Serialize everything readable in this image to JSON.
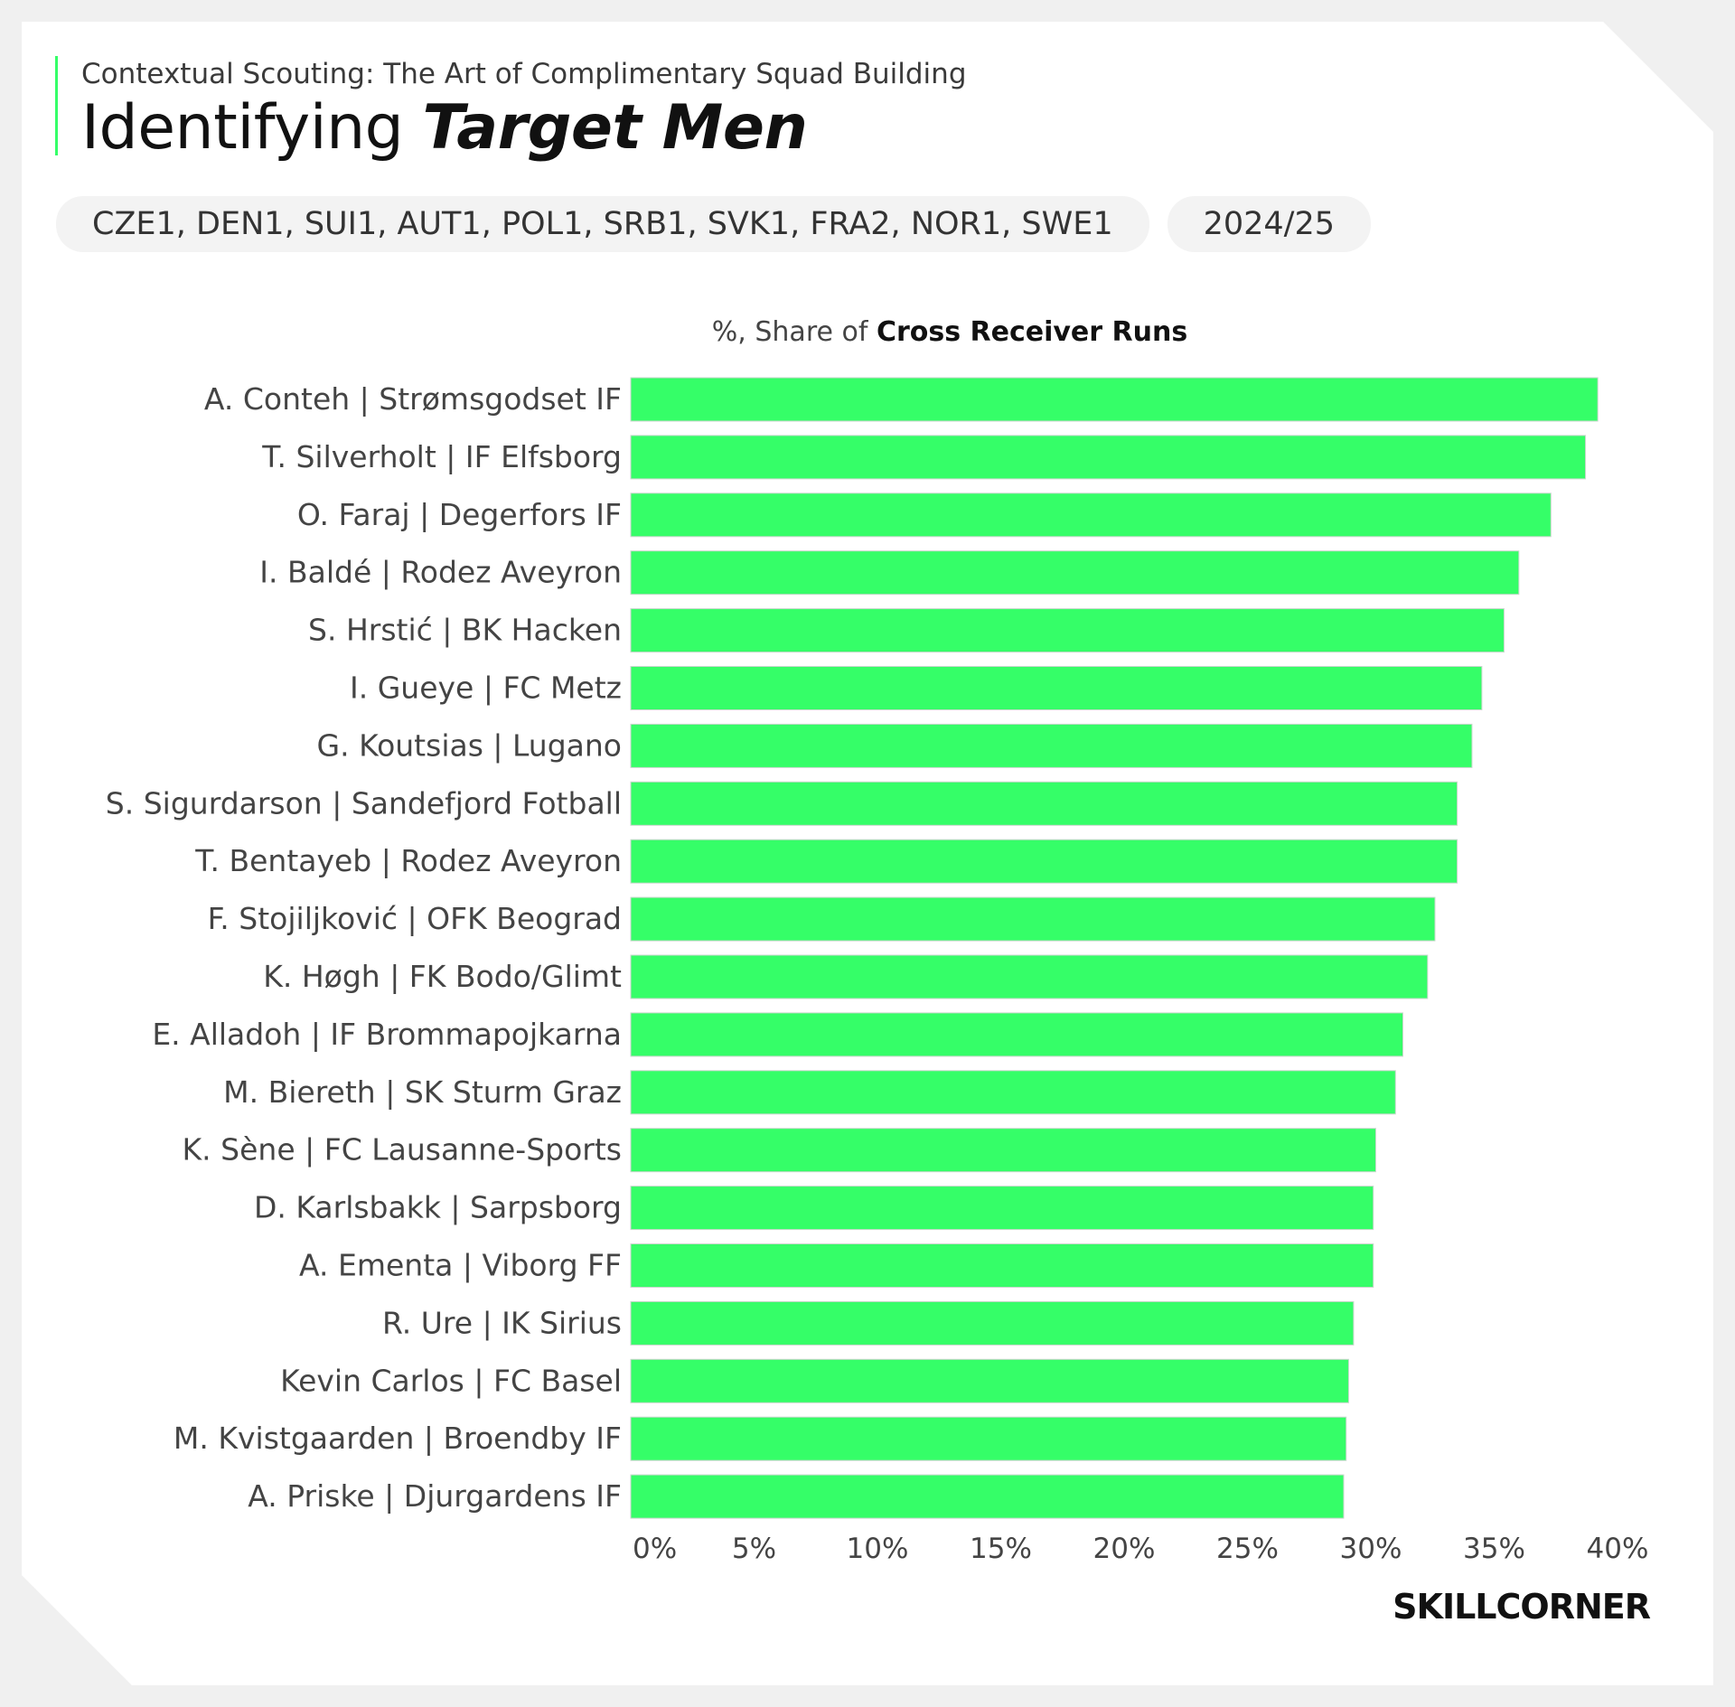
{
  "header": {
    "supertitle": "Contextual Scouting: The Art of Complimentary Squad Building",
    "title_plain": "Identifying ",
    "title_emph": "Target Men"
  },
  "filters": {
    "leagues": "CZE1, DEN1, SUI1, AUT1, POL1, SRB1, SVK1, FRA2, NOR1, SWE1",
    "season": "2024/25"
  },
  "chart_data": {
    "type": "bar",
    "orientation": "horizontal",
    "title_prefix": "%, Share of ",
    "title_emph": "Cross Receiver Runs",
    "categories": [
      "A. Conteh | Strømsgodset IF",
      "T. Silverholt | IF Elfsborg",
      "O. Faraj | Degerfors IF",
      "I. Baldé | Rodez Aveyron",
      "S. Hrstić | BK Hacken",
      "I. Gueye | FC Metz",
      "G. Koutsias | Lugano",
      "S. Sigurdarson | Sandefjord Fotball",
      "T. Bentayeb | Rodez Aveyron",
      "F. Stojiljković | OFK Beograd",
      "K. Høgh | FK Bodo/Glimt",
      "E. Alladoh | IF Brommapojkarna",
      "M. Biereth | SK Sturm Graz",
      "K. Sène | FC Lausanne-Sports",
      "D. Karlsbakk | Sarpsborg",
      "A. Ementa | Viborg FF",
      "R. Ure | IK Sirius",
      "Kevin Carlos | FC Basel",
      "M. Kvistgaarden | Broendby IF",
      "A. Priske | Djurgardens IF"
    ],
    "values": [
      39.2,
      38.7,
      37.3,
      36.0,
      35.4,
      34.5,
      34.1,
      33.5,
      33.5,
      32.6,
      32.3,
      31.3,
      31.0,
      30.2,
      30.1,
      30.1,
      29.3,
      29.1,
      29.0,
      28.9
    ],
    "xlim": [
      0,
      40
    ],
    "xticks": [
      "0%",
      "5%",
      "10%",
      "15%",
      "20%",
      "25%",
      "30%",
      "35%",
      "40%"
    ],
    "bar_color": "#35fe68",
    "grid": false
  },
  "brand": {
    "logo": "SKILLCORNER"
  }
}
